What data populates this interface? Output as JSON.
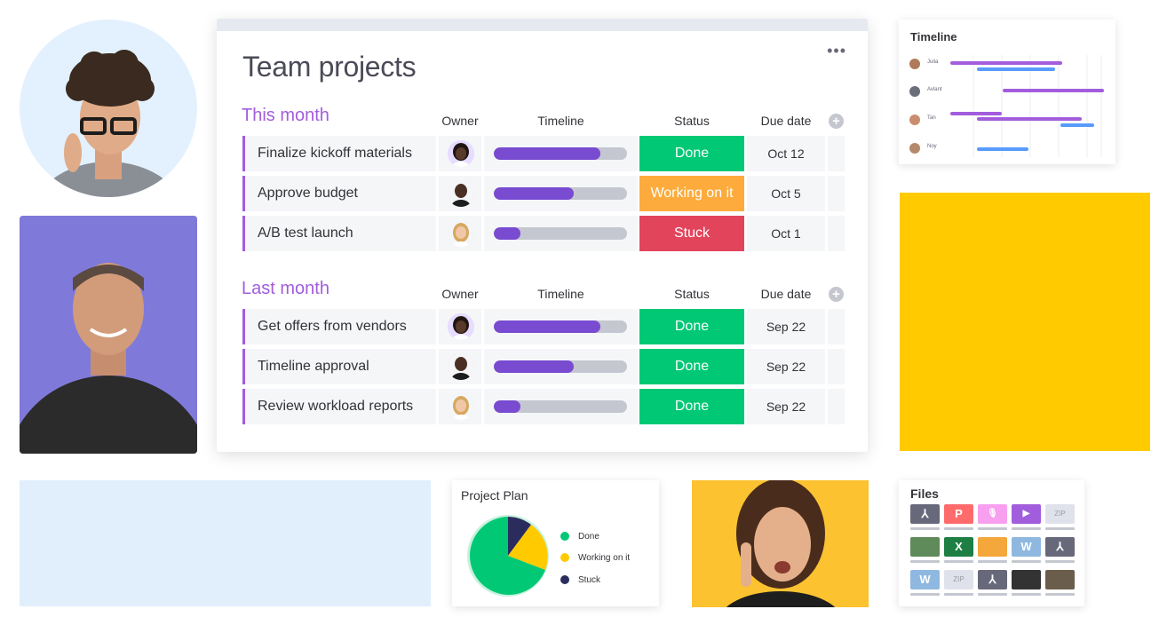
{
  "board": {
    "title": "Team projects",
    "menu_icon": "more-dots-icon",
    "menu_label": "•••",
    "columns": [
      "Owner",
      "Timeline",
      "Status",
      "Due date"
    ],
    "add_column_label": "+",
    "groups": [
      {
        "title": "This month",
        "rows": [
          {
            "name": "Finalize kickoff materials",
            "owner": "avatar-woman-dark",
            "progress": 0.8,
            "status": "Done",
            "status_color": "#00c875",
            "due": "Oct 12"
          },
          {
            "name": "Approve budget",
            "owner": "avatar-man-bald",
            "progress": 0.6,
            "status": "Working on it",
            "status_color": "#fdab3d",
            "due": "Oct 5"
          },
          {
            "name": "A/B test launch",
            "owner": "avatar-woman-blonde",
            "progress": 0.2,
            "status": "Stuck",
            "status_color": "#e2445c",
            "due": "Oct 1"
          }
        ]
      },
      {
        "title": "Last month",
        "rows": [
          {
            "name": "Get offers from vendors",
            "owner": "avatar-woman-dark",
            "progress": 0.8,
            "status": "Done",
            "status_color": "#00c875",
            "due": "Sep 22"
          },
          {
            "name": "Timeline approval",
            "owner": "avatar-man-bald",
            "progress": 0.6,
            "status": "Done",
            "status_color": "#00c875",
            "due": "Sep 22"
          },
          {
            "name": "Review workload reports",
            "owner": "avatar-woman-blonde",
            "progress": 0.2,
            "status": "Done",
            "status_color": "#00c875",
            "due": "Sep 22"
          }
        ]
      }
    ]
  },
  "timeline_card": {
    "title": "Timeline",
    "rows": [
      {
        "name": "Julia"
      },
      {
        "name": "Avlant"
      },
      {
        "name": "Tan"
      },
      {
        "name": "Noy"
      }
    ]
  },
  "project_plan": {
    "title": "Project Plan",
    "legend": [
      {
        "label": "Done",
        "color": "#00c875"
      },
      {
        "label": "Working on it",
        "color": "#ffcb00"
      },
      {
        "label": "Stuck",
        "color": "#2b2c5e"
      }
    ]
  },
  "files": {
    "title": "Files",
    "tiles": [
      {
        "icon": "pdf-icon",
        "label": "⅄",
        "color": "#676879"
      },
      {
        "icon": "powerpoint-icon",
        "label": "P",
        "color": "#ff6b6b"
      },
      {
        "icon": "microphone-icon",
        "label": "🎙",
        "color": "#f99ff0"
      },
      {
        "icon": "video-icon",
        "label": "▶",
        "color": "#a25ddc"
      },
      {
        "icon": "zip-icon",
        "label": "ZIP",
        "color": "#dfe2ea"
      },
      {
        "icon": "plant-image-icon",
        "label": "",
        "color": "#5f8a5a"
      },
      {
        "icon": "excel-icon",
        "label": "X",
        "color": "#1d7f43"
      },
      {
        "icon": "photo-thumbnail-icon",
        "label": "",
        "color": "#f4a73a"
      },
      {
        "icon": "word-icon",
        "label": "W",
        "color": "#8fb8e0"
      },
      {
        "icon": "pdf-icon",
        "label": "⅄",
        "color": "#676879"
      },
      {
        "icon": "word-icon",
        "label": "W",
        "color": "#8fb8e0"
      },
      {
        "icon": "zip-icon",
        "label": "ZIP",
        "color": "#dfe2ea"
      },
      {
        "icon": "pdf-icon",
        "label": "⅄",
        "color": "#676879"
      },
      {
        "icon": "laptop-image-icon",
        "label": "",
        "color": "#333333"
      },
      {
        "icon": "laptop-image-icon",
        "label": "",
        "color": "#6b5d4b"
      }
    ]
  }
}
